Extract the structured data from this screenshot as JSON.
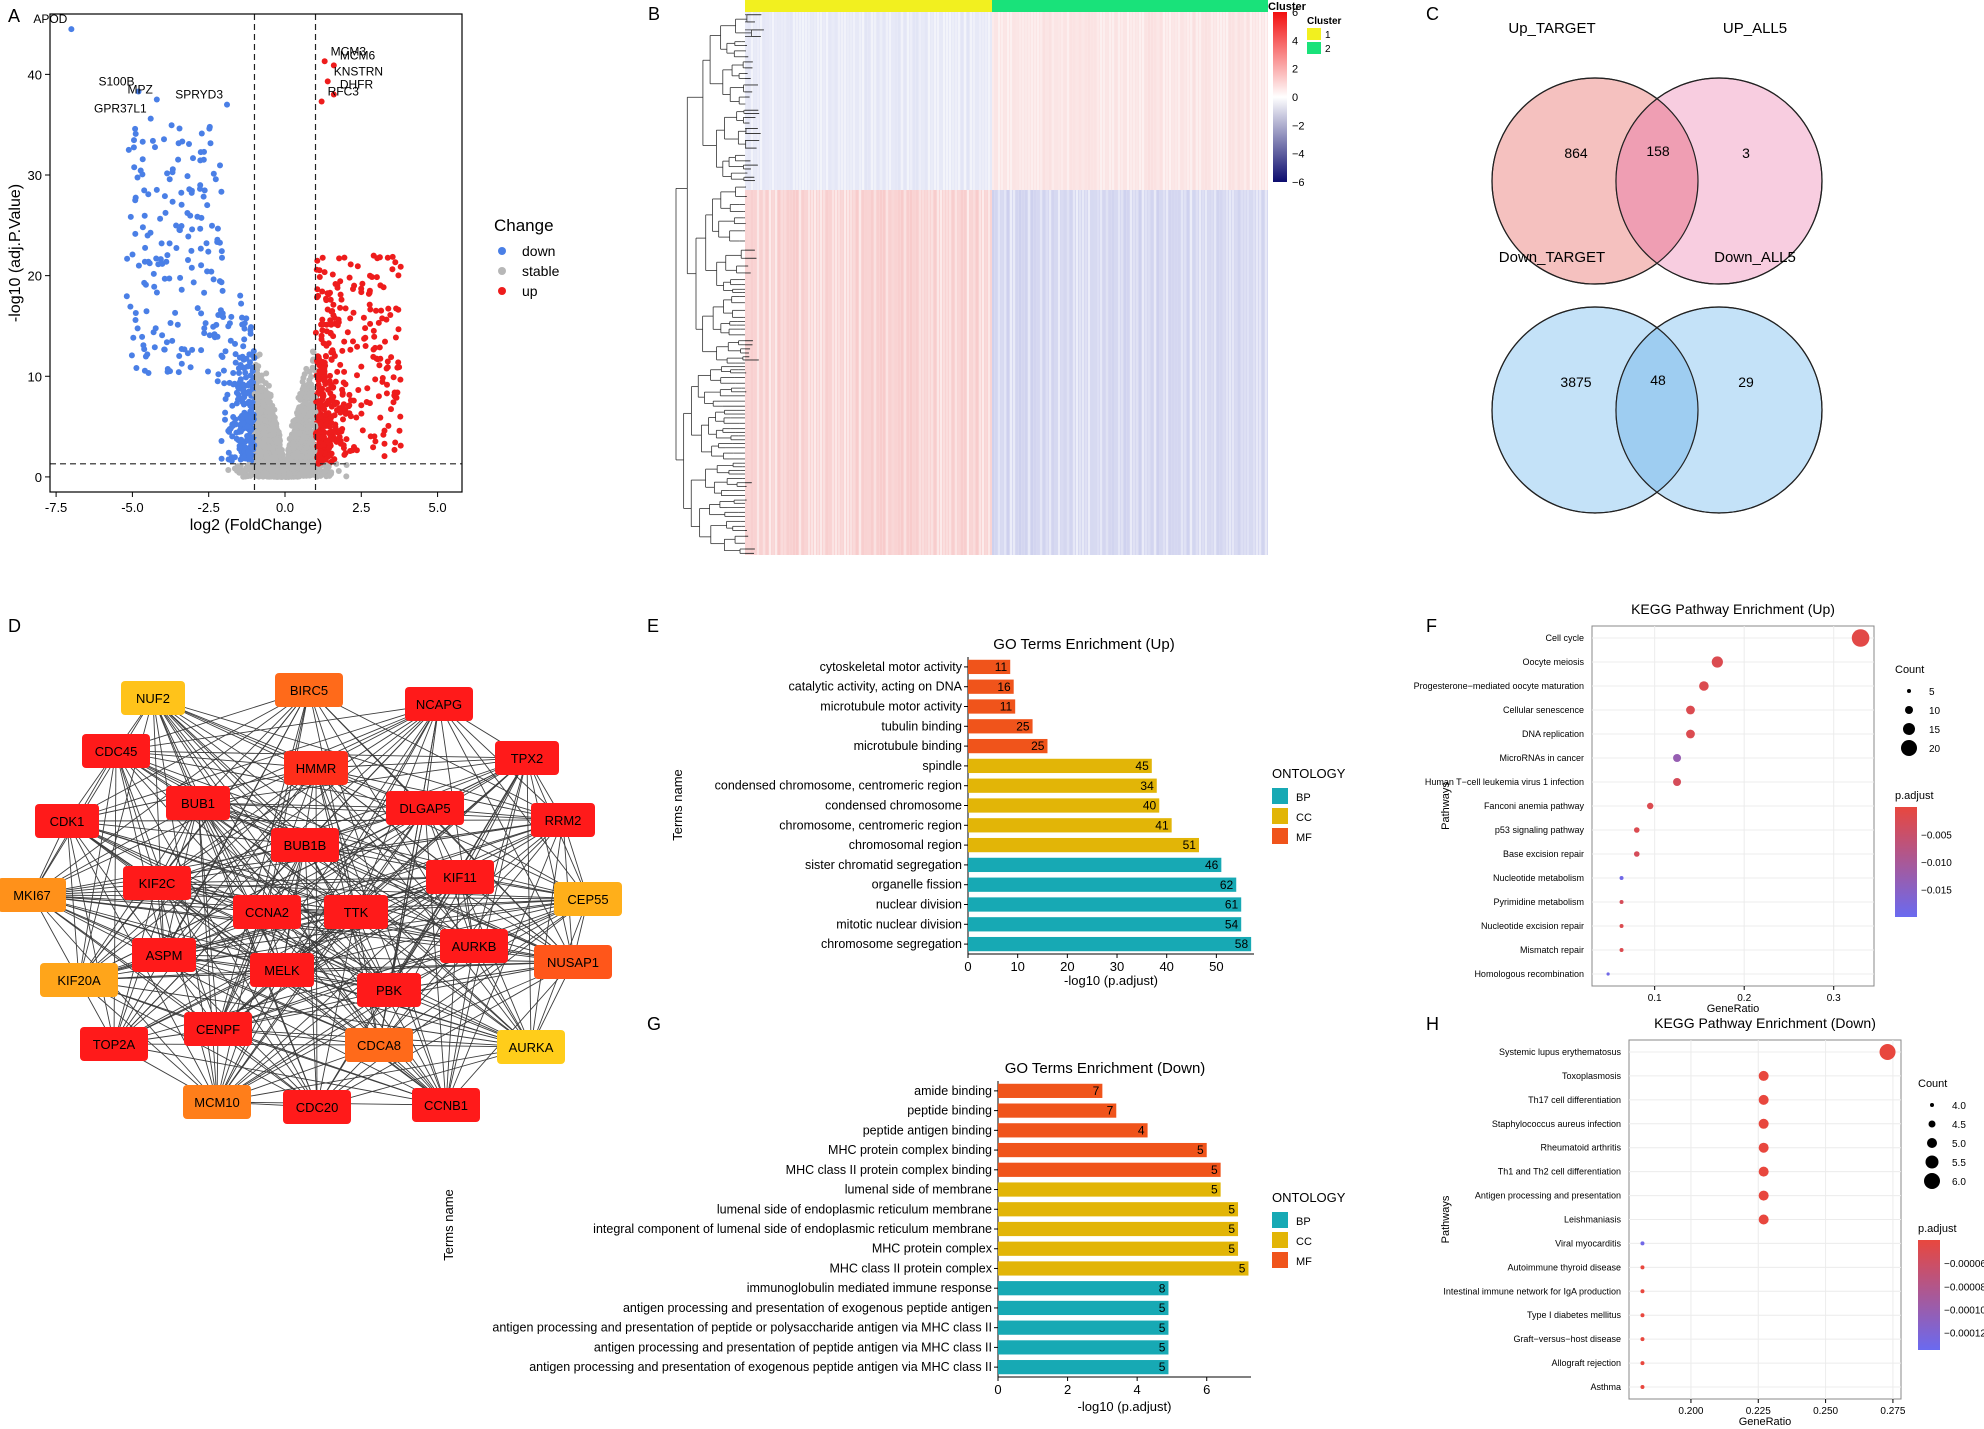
{
  "panel_letters": [
    "A",
    "B",
    "C",
    "D",
    "E",
    "F",
    "G",
    "H"
  ],
  "colors": {
    "down": "#4a7fe6",
    "stable": "#b7b7b7",
    "up": "#ee1c1c",
    "bp": "#17a9b4",
    "cc": "#e2b507",
    "mf": "#f0541b",
    "cluster1": "#f2f01f",
    "cluster2": "#19e27a",
    "venn_up_left": "#f5c1bf",
    "venn_up_right": "#f8cde0",
    "venn_up_mid": "#ef9eb3",
    "venn_down_left": "#c4e2f8",
    "venn_down_right": "#c4e2f8",
    "venn_down_mid": "#9ecdf1",
    "padj_high": "#e8473e",
    "padj_low": "#6a6af0"
  },
  "chart_data": [
    {
      "panel": "A",
      "type": "scatter",
      "xlabel": "log2 (FoldChange)",
      "ylabel": "-log10 (adj.P.Value)",
      "xlim": [
        -7.7,
        5.8
      ],
      "ylim": [
        -1.5,
        46
      ],
      "xticks": [
        -7.5,
        -5.0,
        -2.5,
        0.0,
        2.5,
        5.0
      ],
      "xtick_labels": [
        "-7.5",
        "-5.0",
        "-2.5",
        "0.0",
        "2.5",
        "5.0"
      ],
      "yticks": [
        0,
        10,
        20,
        30,
        40
      ],
      "ytick_labels": [
        "0",
        "10",
        "20",
        "30",
        "40"
      ],
      "vlines": [
        -1,
        1
      ],
      "hline": 1.3,
      "legend": {
        "title": "Change",
        "items": [
          "down",
          "stable",
          "up"
        ],
        "position": "right"
      },
      "labeled_points": [
        {
          "label": "APOD",
          "x": -7.0,
          "y": 44.5,
          "group": "down"
        },
        {
          "label": "S100B",
          "x": -4.8,
          "y": 38.3,
          "group": "down"
        },
        {
          "label": "MPZ",
          "x": -4.2,
          "y": 37.5,
          "group": "down"
        },
        {
          "label": "GPR37L1",
          "x": -4.4,
          "y": 35.6,
          "group": "down"
        },
        {
          "label": "SPRYD3",
          "x": -1.9,
          "y": 37.0,
          "group": "down"
        },
        {
          "label": "MCM3",
          "x": 1.3,
          "y": 41.3,
          "group": "up"
        },
        {
          "label": "MCM6",
          "x": 1.6,
          "y": 40.9,
          "group": "up"
        },
        {
          "label": "KNSTRN",
          "x": 1.4,
          "y": 39.3,
          "group": "up"
        },
        {
          "label": "DHFR",
          "x": 1.6,
          "y": 38.0,
          "group": "up"
        },
        {
          "label": "RFC3",
          "x": 1.2,
          "y": 37.3,
          "group": "up"
        }
      ]
    },
    {
      "panel": "B",
      "type": "heatmap",
      "legend_title": "Cluster",
      "clusters": [
        "1",
        "2"
      ],
      "color_scale": [
        6,
        4,
        2,
        0,
        -2,
        -4,
        -6
      ],
      "color_scale_labels": [
        "6",
        "4",
        "2",
        "0",
        "−2",
        "−4",
        "−6"
      ]
    },
    {
      "panel": "C",
      "type": "venn",
      "sets": [
        {
          "left": "Up_TARGET",
          "right": "UP_ALL5",
          "left_only": 864,
          "both": 158,
          "right_only": 3
        },
        {
          "left": "Down_TARGET",
          "right": "Down_ALL5",
          "left_only": 3875,
          "both": 48,
          "right_only": 29
        }
      ]
    },
    {
      "panel": "D",
      "type": "network",
      "nodes": [
        {
          "id": "NUF2",
          "level": 0.15
        },
        {
          "id": "BIRC5",
          "level": 0.6
        },
        {
          "id": "NCAPG",
          "level": 1.0
        },
        {
          "id": "CDC45",
          "level": 1.0
        },
        {
          "id": "HMMR",
          "level": 0.9
        },
        {
          "id": "TPX2",
          "level": 1.0
        },
        {
          "id": "BUB1",
          "level": 1.0
        },
        {
          "id": "DLGAP5",
          "level": 1.0
        },
        {
          "id": "CDK1",
          "level": 1.0
        },
        {
          "id": "RRM2",
          "level": 1.0
        },
        {
          "id": "BUB1B",
          "level": 1.0
        },
        {
          "id": "MKI67",
          "level": 0.4
        },
        {
          "id": "KIF2C",
          "level": 1.0
        },
        {
          "id": "KIF11",
          "level": 1.0
        },
        {
          "id": "CEP55",
          "level": 0.25
        },
        {
          "id": "CCNA2",
          "level": 1.0
        },
        {
          "id": "TTK",
          "level": 1.0
        },
        {
          "id": "ASPM",
          "level": 1.0
        },
        {
          "id": "AURKB",
          "level": 1.0
        },
        {
          "id": "NUSAP1",
          "level": 0.7
        },
        {
          "id": "KIF20A",
          "level": 0.3
        },
        {
          "id": "MELK",
          "level": 1.0
        },
        {
          "id": "PBK",
          "level": 1.0
        },
        {
          "id": "CENPF",
          "level": 1.0
        },
        {
          "id": "TOP2A",
          "level": 1.0
        },
        {
          "id": "CDCA8",
          "level": 0.6
        },
        {
          "id": "AURKA",
          "level": 0.1
        },
        {
          "id": "MCM10",
          "level": 0.5
        },
        {
          "id": "CDC20",
          "level": 1.0
        },
        {
          "id": "CCNB1",
          "level": 1.0
        }
      ]
    },
    {
      "panel": "E",
      "type": "bar",
      "title": "GO Terms Enrichment (Up)",
      "xlabel": "-log10 (p.adjust)",
      "ylabel": "Terms name",
      "xlim": [
        0,
        57
      ],
      "xticks": [
        0,
        10,
        20,
        30,
        40,
        50
      ],
      "xtick_labels": [
        "0",
        "10",
        "20",
        "30",
        "40",
        "50"
      ],
      "legend": {
        "title": "ONTOLOGY",
        "items": [
          "BP",
          "CC",
          "MF"
        ]
      },
      "categories": [
        "cytoskeletal motor activity",
        "catalytic activity, acting on DNA",
        "microtubule motor activity",
        "tubulin binding",
        "microtubule binding",
        "spindle",
        "condensed chromosome, centromeric region",
        "condensed chromosome",
        "chromosome, centromeric region",
        "chromosomal region",
        "sister chromatid segregation",
        "organelle fission",
        "nuclear division",
        "mitotic nuclear division",
        "chromosome segregation"
      ],
      "values": [
        8.5,
        9.2,
        9.5,
        13.0,
        16.0,
        37.0,
        38.0,
        38.5,
        41.0,
        46.5,
        51.0,
        54.0,
        55.0,
        55.0,
        57.0
      ],
      "counts": [
        "11",
        "16",
        "11",
        "25",
        "25",
        "45",
        "34",
        "40",
        "41",
        "51",
        "46",
        "62",
        "61",
        "54",
        "58"
      ],
      "ontology": [
        "MF",
        "MF",
        "MF",
        "MF",
        "MF",
        "CC",
        "CC",
        "CC",
        "CC",
        "CC",
        "BP",
        "BP",
        "BP",
        "BP",
        "BP"
      ]
    },
    {
      "panel": "F",
      "type": "scatter",
      "title": "KEGG Pathway Enrichment (Up)",
      "xlabel": "GeneRatio",
      "ylabel": "Pathways",
      "xlim": [
        0.03,
        0.345
      ],
      "xticks": [
        0.1,
        0.2,
        0.3
      ],
      "xtick_labels": [
        "0.1",
        "0.2",
        "0.3"
      ],
      "size_legend": {
        "title": "Count",
        "values": [
          5,
          10,
          15,
          20
        ],
        "labels": [
          "5",
          "10",
          "15",
          "20"
        ]
      },
      "color_legend": {
        "title": "p.adjust",
        "ticks": [
          -0.005,
          -0.01,
          -0.015
        ],
        "labels": [
          "−0.005",
          "−0.010",
          "−0.015"
        ],
        "range": [
          0,
          -0.02
        ]
      },
      "categories": [
        "Cell cycle",
        "Oocyte meiosis",
        "Progesterone−mediated oocyte maturation",
        "Cellular senescence",
        "DNA replication",
        "MicroRNAs in cancer",
        "Human T−cell leukemia virus 1 infection",
        "Fanconi anemia pathway",
        "p53 signaling pathway",
        "Base excision repair",
        "Nucleotide metabolism",
        "Pyrimidine metabolism",
        "Nucleotide excision repair",
        "Mismatch repair",
        "Homologous recombination"
      ],
      "gene_ratio": [
        0.33,
        0.17,
        0.155,
        0.14,
        0.14,
        0.125,
        0.125,
        0.095,
        0.08,
        0.08,
        0.063,
        0.063,
        0.063,
        0.063,
        0.048
      ],
      "counts": [
        22,
        14,
        12,
        11,
        11,
        10,
        10,
        8,
        7,
        7,
        5,
        5,
        5,
        5,
        4
      ],
      "p_adjust": [
        -0.001,
        -0.002,
        -0.002,
        -0.002,
        -0.002,
        -0.013,
        -0.003,
        -0.002,
        -0.002,
        -0.003,
        -0.019,
        -0.003,
        -0.002,
        -0.002,
        -0.019
      ]
    },
    {
      "panel": "G",
      "type": "bar",
      "title": "GO Terms Enrichment (Down)",
      "xlabel": "-log10 (p.adjust)",
      "ylabel": "Terms name",
      "xlim": [
        0,
        7.2
      ],
      "xticks": [
        0,
        2,
        4,
        6
      ],
      "xtick_labels": [
        "0",
        "2",
        "4",
        "6"
      ],
      "legend": {
        "title": "ONTOLOGY",
        "items": [
          "BP",
          "CC",
          "MF"
        ]
      },
      "categories": [
        "amide binding",
        "peptide binding",
        "peptide antigen binding",
        "MHC protein complex binding",
        "MHC class II protein complex binding",
        "lumenal side of membrane",
        "lumenal side of endoplasmic reticulum membrane",
        "integral component of lumenal side of endoplasmic reticulum membrane",
        "MHC protein complex",
        "MHC class II protein complex",
        "immunoglobulin mediated immune response",
        "antigen processing and presentation of exogenous peptide antigen",
        "antigen processing and presentation of peptide or polysaccharide antigen via MHC class II",
        "antigen processing and presentation of peptide antigen via MHC class II",
        "antigen processing and presentation of exogenous peptide antigen via MHC class II"
      ],
      "values": [
        3.0,
        3.4,
        4.3,
        6.0,
        6.4,
        6.4,
        6.9,
        6.9,
        6.9,
        7.2,
        4.9,
        4.9,
        4.9,
        4.9,
        4.9
      ],
      "counts": [
        "7",
        "7",
        "4",
        "5",
        "5",
        "5",
        "5",
        "5",
        "5",
        "5",
        "8",
        "5",
        "5",
        "5",
        "5"
      ],
      "ontology": [
        "MF",
        "MF",
        "MF",
        "MF",
        "MF",
        "CC",
        "CC",
        "CC",
        "CC",
        "CC",
        "BP",
        "BP",
        "BP",
        "BP",
        "BP"
      ]
    },
    {
      "panel": "H",
      "type": "scatter",
      "title": "KEGG Pathway Enrichment (Down)",
      "xlabel": "GeneRatio",
      "ylabel": "Pathways",
      "xlim": [
        0.177,
        0.278
      ],
      "xticks": [
        0.2,
        0.225,
        0.25,
        0.275
      ],
      "xtick_labels": [
        "0.200",
        "0.225",
        "0.250",
        "0.275"
      ],
      "size_legend": {
        "title": "Count",
        "values": [
          4.0,
          4.5,
          5.0,
          5.5,
          6.0
        ],
        "labels": [
          "4.0",
          "4.5",
          "5.0",
          "5.5",
          "6.0"
        ]
      },
      "color_legend": {
        "title": "p.adjust",
        "ticks": [
          -6e-05,
          -8e-05,
          -0.0001,
          -0.00012
        ],
        "labels": [
          "−0.00006",
          "−0.00008",
          "−0.00010",
          "−0.00012"
        ],
        "range": [
          -4e-05,
          -0.000135
        ]
      },
      "categories": [
        "Systemic lupus erythematosus",
        "Toxoplasmosis",
        "Th17 cell differentiation",
        "Staphylococcus aureus infection",
        "Rheumatoid arthritis",
        "Th1 and Th2 cell differentiation",
        "Antigen processing and presentation",
        "Leishmaniasis",
        "Viral myocarditis",
        "Autoimmune thyroid disease",
        "Intestinal immune network for IgA production",
        "Type I diabetes mellitus",
        "Graft−versus−host disease",
        "Allograft rejection",
        "Asthma"
      ],
      "gene_ratio": [
        0.273,
        0.227,
        0.227,
        0.227,
        0.227,
        0.227,
        0.227,
        0.227,
        0.182,
        0.182,
        0.182,
        0.182,
        0.182,
        0.182,
        0.182
      ],
      "counts": [
        6,
        5,
        5,
        5,
        5,
        5,
        5,
        5,
        4,
        4,
        4,
        4,
        4,
        4,
        4
      ],
      "p_adjust": [
        -4e-05,
        -4e-05,
        -4e-05,
        -4e-05,
        -4e-05,
        -4e-05,
        -4e-05,
        -4e-05,
        -0.00013,
        -4e-05,
        -4e-05,
        -4e-05,
        -4e-05,
        -4e-05,
        -4e-05
      ]
    }
  ]
}
